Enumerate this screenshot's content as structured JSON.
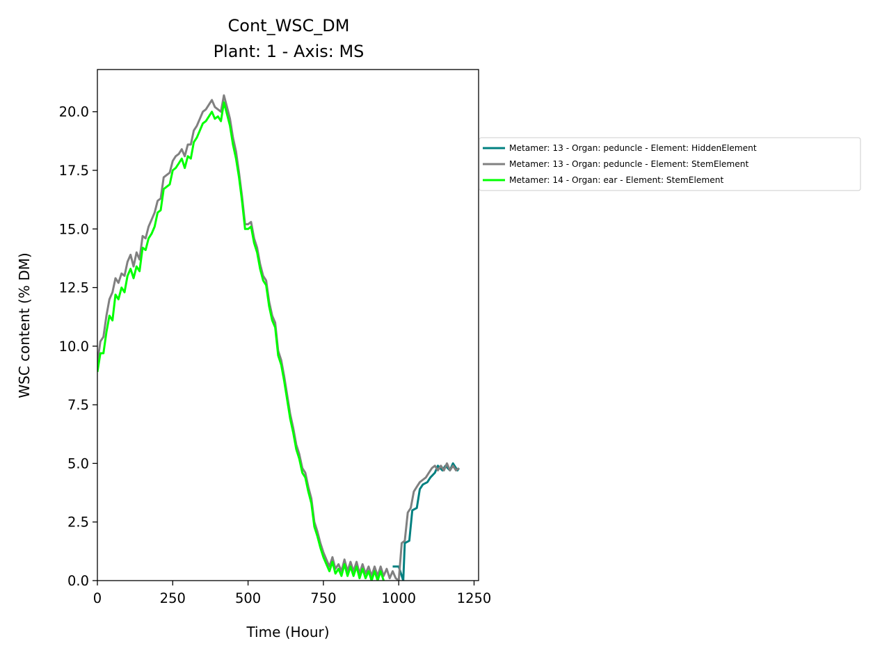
{
  "chart_data": {
    "type": "line",
    "title": "Cont_WSC_DM",
    "subtitle": "Plant: 1 - Axis: MS",
    "xlabel": "Time (Hour)",
    "ylabel": "WSC content (% DM)",
    "xlim": [
      0,
      1265
    ],
    "ylim": [
      0,
      21.8
    ],
    "xticks": [
      0,
      250,
      500,
      750,
      1000,
      1250
    ],
    "xtick_labels": [
      "0",
      "250",
      "500",
      "750",
      "1000",
      "1250"
    ],
    "yticks": [
      0,
      2.5,
      5,
      7.5,
      10,
      12.5,
      15,
      17.5,
      20
    ],
    "ytick_labels": [
      "0.0",
      "2.5",
      "5.0",
      "7.5",
      "10.0",
      "12.5",
      "15.0",
      "17.5",
      "20.0"
    ],
    "grid": false,
    "legend_position": "outside-right",
    "series": [
      {
        "name": "Metamer: 13 - Organ: peduncle - Element: HiddenElement",
        "color": "#008080",
        "x": [
          980,
          1000,
          1015,
          1020,
          1035,
          1045,
          1060,
          1070,
          1080,
          1095,
          1105,
          1120,
          1130,
          1145,
          1155,
          1170,
          1180,
          1195,
          1200
        ],
        "y": [
          0.6,
          0.6,
          0.0,
          1.6,
          1.7,
          3.0,
          3.1,
          3.9,
          4.1,
          4.2,
          4.4,
          4.6,
          4.9,
          4.7,
          4.9,
          4.7,
          5.0,
          4.7,
          4.8
        ]
      },
      {
        "name": "Metamer: 13 - Organ: peduncle - Element: StemElement",
        "color": "#808080",
        "x": [
          0,
          10,
          20,
          30,
          40,
          50,
          60,
          70,
          80,
          90,
          100,
          110,
          120,
          130,
          140,
          150,
          160,
          170,
          180,
          190,
          200,
          210,
          220,
          230,
          240,
          250,
          260,
          270,
          280,
          290,
          300,
          310,
          320,
          330,
          340,
          350,
          360,
          370,
          380,
          390,
          400,
          410,
          420,
          430,
          440,
          450,
          460,
          470,
          480,
          490,
          500,
          510,
          520,
          530,
          540,
          550,
          560,
          570,
          580,
          590,
          600,
          610,
          620,
          630,
          640,
          650,
          660,
          670,
          680,
          690,
          700,
          710,
          720,
          730,
          740,
          750,
          760,
          770,
          780,
          790,
          800,
          810,
          820,
          830,
          840,
          850,
          860,
          870,
          880,
          890,
          900,
          910,
          920,
          930,
          940,
          950,
          960,
          970,
          980,
          990,
          1000,
          1010,
          1020,
          1030,
          1040,
          1050,
          1060,
          1070,
          1080,
          1090,
          1100,
          1110,
          1120,
          1130,
          1140,
          1150,
          1160,
          1170,
          1180,
          1190,
          1200
        ],
        "y": [
          9.3,
          10.2,
          10.4,
          11.3,
          12.0,
          12.3,
          12.9,
          12.7,
          13.1,
          13.0,
          13.6,
          13.9,
          13.4,
          14.0,
          13.7,
          14.7,
          14.6,
          15.1,
          15.4,
          15.7,
          16.2,
          16.3,
          17.2,
          17.3,
          17.4,
          17.9,
          18.1,
          18.2,
          18.4,
          18.1,
          18.6,
          18.6,
          19.2,
          19.4,
          19.7,
          20.0,
          20.1,
          20.3,
          20.5,
          20.2,
          20.1,
          20.0,
          20.7,
          20.2,
          19.7,
          18.9,
          18.3,
          17.4,
          16.4,
          15.2,
          15.2,
          15.3,
          14.6,
          14.2,
          13.5,
          13.0,
          12.8,
          11.9,
          11.3,
          11.0,
          9.8,
          9.4,
          8.7,
          7.9,
          7.1,
          6.5,
          5.8,
          5.4,
          4.8,
          4.6,
          4.0,
          3.5,
          2.5,
          2.1,
          1.6,
          1.2,
          0.9,
          0.6,
          1.0,
          0.5,
          0.7,
          0.4,
          0.9,
          0.4,
          0.8,
          0.4,
          0.8,
          0.3,
          0.7,
          0.3,
          0.6,
          0.2,
          0.6,
          0.2,
          0.6,
          0.2,
          0.5,
          0.1,
          0.4,
          0.1,
          0.0,
          1.6,
          1.7,
          2.9,
          3.1,
          3.8,
          4.0,
          4.2,
          4.3,
          4.4,
          4.6,
          4.8,
          4.9,
          4.7,
          4.9,
          4.7,
          5.0,
          4.7,
          4.9,
          4.7,
          4.8
        ]
      },
      {
        "name": "Metamer: 14 - Organ: ear - Element: StemElement",
        "color": "#00ff00",
        "x": [
          0,
          10,
          20,
          30,
          40,
          50,
          60,
          70,
          80,
          90,
          100,
          110,
          120,
          130,
          140,
          150,
          160,
          170,
          180,
          190,
          200,
          210,
          220,
          230,
          240,
          250,
          260,
          270,
          280,
          290,
          300,
          310,
          320,
          330,
          340,
          350,
          360,
          370,
          380,
          390,
          400,
          410,
          420,
          430,
          440,
          450,
          460,
          470,
          480,
          490,
          500,
          510,
          520,
          530,
          540,
          550,
          560,
          570,
          580,
          590,
          600,
          610,
          620,
          630,
          640,
          650,
          660,
          670,
          680,
          690,
          700,
          710,
          720,
          730,
          740,
          750,
          760,
          770,
          780,
          790,
          800,
          810,
          820,
          830,
          840,
          850,
          860,
          870,
          880,
          890,
          900,
          910,
          920,
          930,
          940,
          950
        ],
        "y": [
          8.9,
          9.7,
          9.7,
          10.6,
          11.3,
          11.1,
          12.2,
          12.0,
          12.5,
          12.3,
          13.0,
          13.3,
          12.9,
          13.4,
          13.2,
          14.2,
          14.1,
          14.6,
          14.8,
          15.1,
          15.7,
          15.8,
          16.7,
          16.8,
          16.9,
          17.5,
          17.6,
          17.8,
          18.0,
          17.6,
          18.1,
          18.0,
          18.7,
          18.9,
          19.2,
          19.5,
          19.6,
          19.8,
          20.0,
          19.7,
          19.8,
          19.6,
          20.4,
          19.9,
          19.4,
          18.6,
          18.0,
          17.2,
          16.2,
          15.0,
          15.0,
          15.1,
          14.4,
          14.0,
          13.3,
          12.8,
          12.6,
          11.7,
          11.1,
          10.8,
          9.6,
          9.2,
          8.5,
          7.7,
          6.9,
          6.3,
          5.6,
          5.2,
          4.6,
          4.4,
          3.8,
          3.3,
          2.3,
          1.9,
          1.4,
          1.0,
          0.7,
          0.4,
          0.8,
          0.3,
          0.5,
          0.2,
          0.7,
          0.2,
          0.6,
          0.2,
          0.6,
          0.1,
          0.5,
          0.1,
          0.4,
          0.0,
          0.4,
          0.0,
          0.4,
          0.0
        ]
      }
    ]
  }
}
